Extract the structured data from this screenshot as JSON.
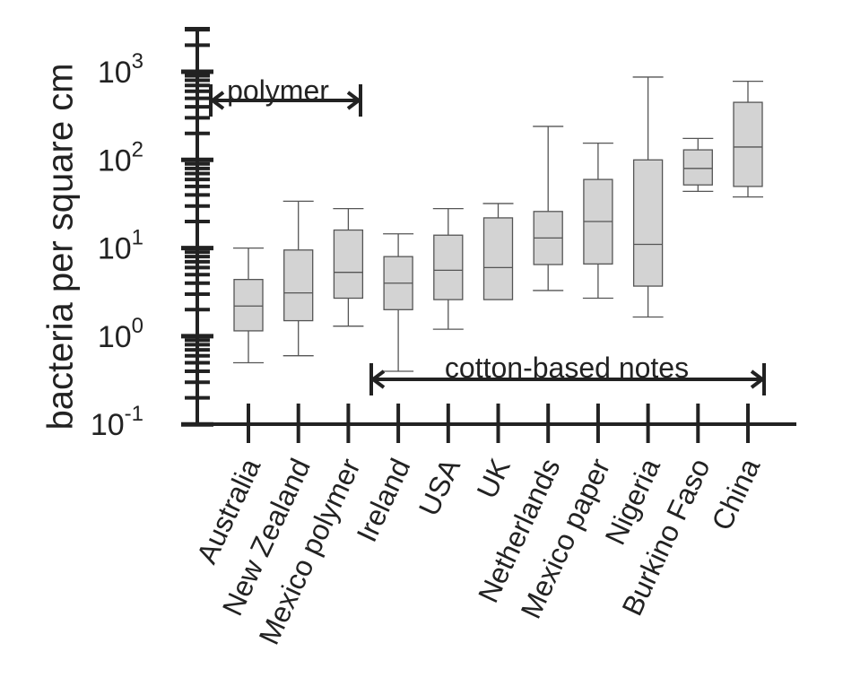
{
  "chart_data": {
    "type": "box",
    "ylabel": "bacteria per square cm",
    "yscale": "log",
    "ylim": [
      0.1,
      3000
    ],
    "y_ticks": [
      {
        "value": 0.1,
        "base": "10",
        "exp": "-1"
      },
      {
        "value": 1,
        "base": "10",
        "exp": "0"
      },
      {
        "value": 10,
        "base": "10",
        "exp": "1"
      },
      {
        "value": 100,
        "base": "10",
        "exp": "2"
      },
      {
        "value": 1000,
        "base": "10",
        "exp": "3"
      }
    ],
    "categories": [
      "Australia",
      "New Zealand",
      "Mexico polymer",
      "Ireland",
      "USA",
      "UK",
      "Netherlands",
      "Mexico paper",
      "Nigeria",
      "Burkino Faso",
      "China"
    ],
    "boxes": [
      {
        "min": 0.5,
        "q1": 1.15,
        "median": 2.2,
        "q3": 4.4,
        "max": 10
      },
      {
        "min": 0.6,
        "q1": 1.5,
        "median": 3.1,
        "q3": 9.5,
        "max": 34
      },
      {
        "min": 1.3,
        "q1": 2.7,
        "median": 5.3,
        "q3": 16,
        "max": 28
      },
      {
        "min": 0.4,
        "q1": 2.0,
        "median": 4.0,
        "q3": 8.0,
        "max": 14.5
      },
      {
        "min": 1.2,
        "q1": 2.6,
        "median": 5.6,
        "q3": 14,
        "max": 28
      },
      {
        "min": null,
        "q1": 2.6,
        "median": 6.0,
        "q3": 22,
        "max": 32
      },
      {
        "min": 3.3,
        "q1": 6.5,
        "median": 13,
        "q3": 26,
        "max": 240
      },
      {
        "min": 2.7,
        "q1": 6.6,
        "median": 20,
        "q3": 60,
        "max": 155
      },
      {
        "min": 1.65,
        "q1": 3.7,
        "median": 11,
        "q3": 100,
        "max": 870
      },
      {
        "min": 44,
        "q1": 52,
        "median": 80,
        "q3": 130,
        "max": 175
      },
      {
        "min": 38,
        "q1": 50,
        "median": 140,
        "q3": 450,
        "max": 780
      }
    ],
    "annotations": [
      {
        "label": "polymer",
        "from_category": 0,
        "to_category": 2
      },
      {
        "label": "cotton-based notes",
        "from_category": 3,
        "to_category": 10
      }
    ],
    "grid": false,
    "box_fill": "#d3d3d3",
    "axis_color": "#222222"
  }
}
